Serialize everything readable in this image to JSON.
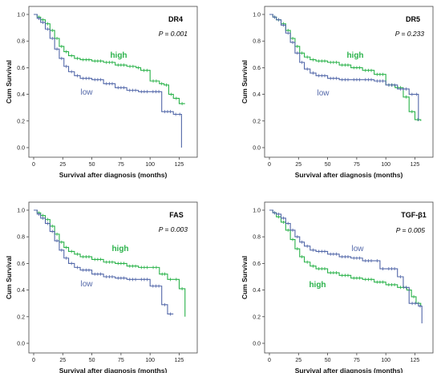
{
  "chart_data": [
    {
      "type": "line",
      "step": true,
      "title": "DR4",
      "p_value": "P = 0.001",
      "xlabel": "Survival after diagnosis (months)",
      "ylabel": "Cum Survival",
      "xlim": [
        0,
        135
      ],
      "ylim": [
        0,
        1.0
      ],
      "xticks": [
        "0",
        "25",
        "50",
        "75",
        "100",
        "125"
      ],
      "yticks": [
        "0.0",
        "0.2",
        "0.4",
        "0.6",
        "0.8",
        "1.0"
      ],
      "series": [
        {
          "name": "high",
          "color": "#2ab24a",
          "x": [
            0,
            3,
            6,
            10,
            14,
            18,
            22,
            26,
            30,
            35,
            40,
            50,
            60,
            70,
            80,
            88,
            92,
            100,
            108,
            112,
            116,
            120,
            125,
            130
          ],
          "y": [
            1.0,
            0.98,
            0.96,
            0.93,
            0.88,
            0.82,
            0.76,
            0.72,
            0.69,
            0.67,
            0.66,
            0.65,
            0.64,
            0.62,
            0.61,
            0.6,
            0.58,
            0.5,
            0.48,
            0.47,
            0.4,
            0.37,
            0.33,
            0.33
          ]
        },
        {
          "name": "low",
          "color": "#5368a9",
          "x": [
            0,
            3,
            6,
            10,
            14,
            18,
            22,
            26,
            30,
            35,
            40,
            50,
            60,
            70,
            80,
            90,
            100,
            110,
            120,
            124,
            127
          ],
          "y": [
            1.0,
            0.97,
            0.94,
            0.89,
            0.82,
            0.74,
            0.67,
            0.61,
            0.57,
            0.54,
            0.52,
            0.51,
            0.48,
            0.45,
            0.43,
            0.42,
            0.42,
            0.27,
            0.25,
            0.25,
            0.0
          ]
        }
      ]
    },
    {
      "type": "line",
      "step": true,
      "title": "DR5",
      "p_value": "P = 0.233",
      "xlabel": "Survival after diagnosis (months)",
      "ylabel": "Cum Survival",
      "xlim": [
        0,
        135
      ],
      "ylim": [
        0,
        1.0
      ],
      "xticks": [
        "0",
        "25",
        "50",
        "75",
        "100",
        "125"
      ],
      "yticks": [
        "0.0",
        "0.2",
        "0.4",
        "0.6",
        "0.8",
        "1.0"
      ],
      "series": [
        {
          "name": "high",
          "color": "#2ab24a",
          "x": [
            0,
            3,
            6,
            10,
            14,
            18,
            22,
            26,
            30,
            35,
            40,
            50,
            60,
            70,
            80,
            90,
            100,
            108,
            115,
            120,
            125,
            130
          ],
          "y": [
            1.0,
            0.98,
            0.96,
            0.93,
            0.88,
            0.82,
            0.76,
            0.71,
            0.68,
            0.66,
            0.65,
            0.64,
            0.62,
            0.6,
            0.58,
            0.55,
            0.47,
            0.45,
            0.38,
            0.27,
            0.21,
            0.2
          ]
        },
        {
          "name": "low",
          "color": "#5368a9",
          "x": [
            0,
            3,
            6,
            10,
            14,
            18,
            22,
            26,
            30,
            35,
            40,
            50,
            60,
            70,
            80,
            90,
            100,
            110,
            120,
            125,
            128
          ],
          "y": [
            1.0,
            0.98,
            0.96,
            0.92,
            0.86,
            0.79,
            0.71,
            0.64,
            0.59,
            0.56,
            0.54,
            0.52,
            0.51,
            0.51,
            0.51,
            0.5,
            0.47,
            0.44,
            0.4,
            0.4,
            0.2
          ]
        }
      ]
    },
    {
      "type": "line",
      "step": true,
      "title": "FAS",
      "p_value": "P = 0.003",
      "xlabel": "Survival after diagnosis (months)",
      "ylabel": "Cum Survival",
      "xlim": [
        0,
        135
      ],
      "ylim": [
        0,
        1.0
      ],
      "xticks": [
        "0",
        "25",
        "50",
        "75",
        "100",
        "125"
      ],
      "yticks": [
        "0.0",
        "0.2",
        "0.4",
        "0.6",
        "0.8",
        "1.0"
      ],
      "series": [
        {
          "name": "high",
          "color": "#2ab24a",
          "x": [
            0,
            3,
            6,
            10,
            14,
            18,
            22,
            26,
            30,
            35,
            40,
            50,
            60,
            70,
            80,
            90,
            100,
            108,
            115,
            120,
            125,
            130
          ],
          "y": [
            1.0,
            0.98,
            0.96,
            0.93,
            0.88,
            0.82,
            0.76,
            0.72,
            0.69,
            0.67,
            0.65,
            0.63,
            0.61,
            0.6,
            0.58,
            0.57,
            0.57,
            0.52,
            0.48,
            0.48,
            0.41,
            0.2
          ]
        },
        {
          "name": "low",
          "color": "#5368a9",
          "x": [
            0,
            3,
            6,
            10,
            14,
            18,
            22,
            26,
            30,
            35,
            40,
            50,
            60,
            70,
            80,
            90,
            100,
            110,
            115,
            120
          ],
          "y": [
            1.0,
            0.97,
            0.94,
            0.9,
            0.84,
            0.77,
            0.7,
            0.64,
            0.6,
            0.57,
            0.55,
            0.52,
            0.5,
            0.49,
            0.48,
            0.48,
            0.43,
            0.29,
            0.22,
            0.22
          ]
        }
      ]
    },
    {
      "type": "line",
      "step": true,
      "title": "TGF-β1",
      "p_value": "P = 0.005",
      "xlabel": "Survival after diagnosis (months)",
      "ylabel": "Cum Survival",
      "xlim": [
        0,
        135
      ],
      "ylim": [
        0,
        1.0
      ],
      "xticks": [
        "0",
        "25",
        "50",
        "75",
        "100",
        "125"
      ],
      "yticks": [
        "0.0",
        "0.2",
        "0.4",
        "0.6",
        "0.8",
        "1.0"
      ],
      "series": [
        {
          "name": "high",
          "color": "#2ab24a",
          "x": [
            0,
            3,
            6,
            10,
            14,
            18,
            22,
            26,
            30,
            35,
            40,
            50,
            60,
            70,
            80,
            90,
            100,
            110,
            118,
            122,
            126,
            130
          ],
          "y": [
            1.0,
            0.98,
            0.95,
            0.91,
            0.85,
            0.78,
            0.71,
            0.65,
            0.61,
            0.58,
            0.56,
            0.53,
            0.51,
            0.49,
            0.48,
            0.46,
            0.44,
            0.42,
            0.4,
            0.35,
            0.3,
            0.28
          ]
        },
        {
          "name": "low",
          "color": "#5368a9",
          "x": [
            0,
            3,
            6,
            10,
            14,
            18,
            22,
            26,
            30,
            35,
            40,
            50,
            60,
            70,
            80,
            90,
            95,
            100,
            110,
            115,
            120,
            128,
            131
          ],
          "y": [
            1.0,
            0.98,
            0.97,
            0.94,
            0.9,
            0.85,
            0.8,
            0.76,
            0.73,
            0.7,
            0.69,
            0.67,
            0.65,
            0.64,
            0.62,
            0.62,
            0.56,
            0.56,
            0.5,
            0.42,
            0.3,
            0.28,
            0.15
          ]
        }
      ]
    }
  ]
}
